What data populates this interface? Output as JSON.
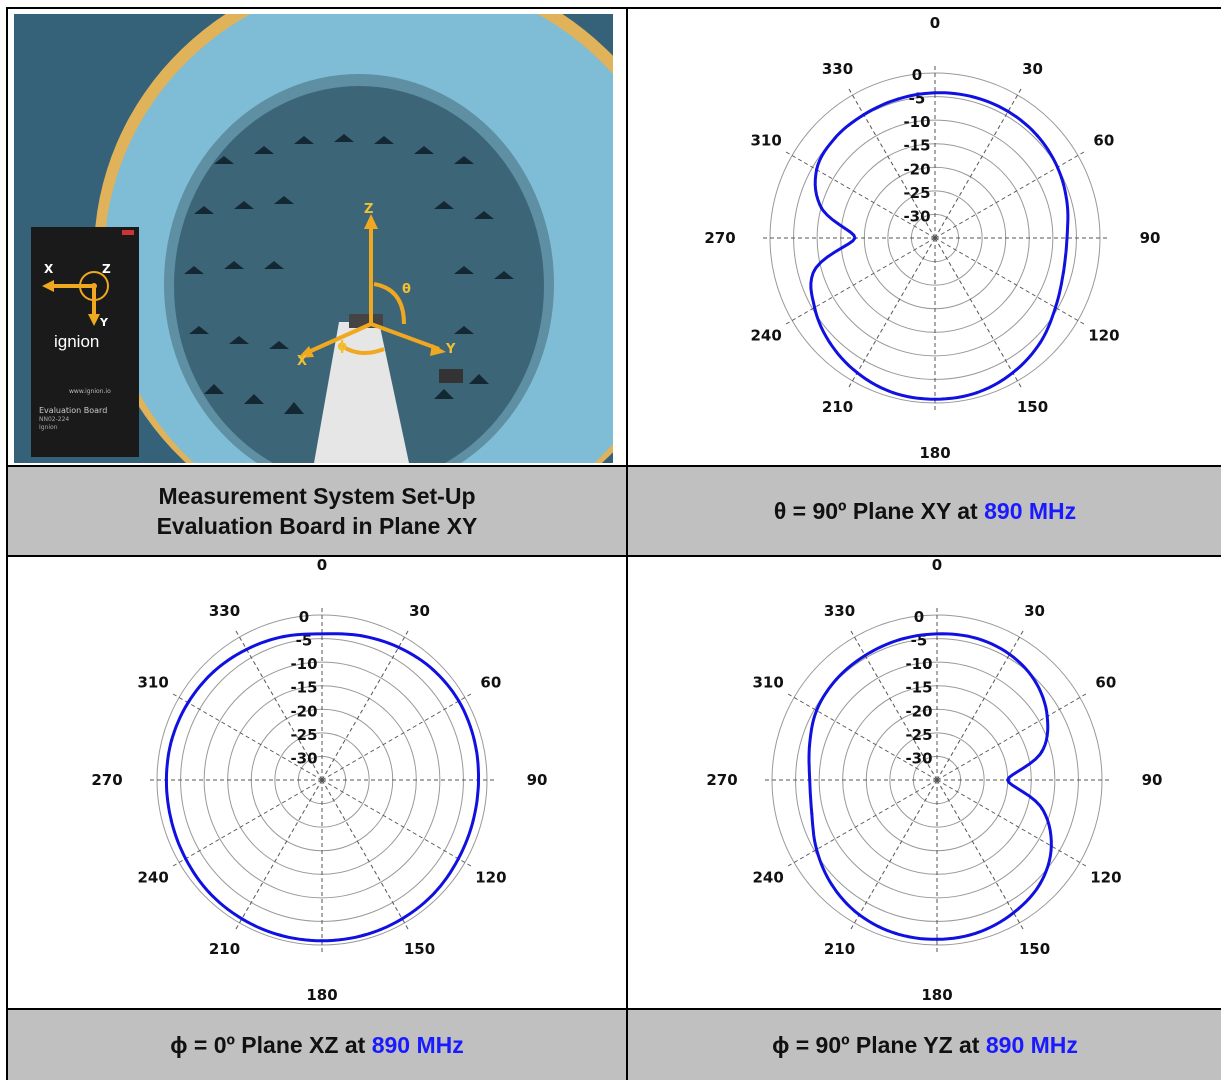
{
  "captions": {
    "setup_line1": "Measurement System Set-Up",
    "setup_line2": "Evaluation Board in Plane XY",
    "xy": {
      "prefix": "θ = 90º Plane XY at ",
      "freq": "890 MHz"
    },
    "xz": {
      "prefix": "ϕ = 0º Plane XZ at ",
      "freq": "890 MHz"
    },
    "yz": {
      "prefix": "ϕ = 90º Plane YZ at ",
      "freq": "890 MHz"
    }
  },
  "photo": {
    "board_logo": "ignion",
    "board_url": "www.ignion.io",
    "board_title": "Evaluation Board",
    "board_model": "NN02-224",
    "board_brand": "Ignion",
    "axes": {
      "x": "X",
      "y": "Y",
      "z": "Z",
      "theta": "θ",
      "phi": "ϕ"
    },
    "board_axes": {
      "x": "X",
      "y": "Y",
      "z": "Z"
    }
  },
  "colors": {
    "trace": "#1010e0",
    "caption_bg": "#c0c0c0",
    "freq_text": "#1a1aff"
  },
  "chart_data": [
    {
      "type": "polar",
      "name": "xy",
      "angle_labels": [
        "0",
        "30",
        "60",
        "90",
        "120",
        "150",
        "180",
        "210",
        "240",
        "270",
        "310",
        "330"
      ],
      "ring_labels": [
        "0",
        "-5",
        "-10",
        "-15",
        "-20",
        "-25",
        "-30"
      ],
      "r_range": [
        -35,
        0
      ],
      "angles_deg": [
        0,
        15,
        30,
        45,
        60,
        75,
        90,
        105,
        120,
        135,
        150,
        165,
        180,
        195,
        210,
        225,
        240,
        255,
        270,
        285,
        300,
        315,
        330,
        345
      ],
      "gain_db": [
        -4.2,
        -4.0,
        -4.0,
        -4.3,
        -5.0,
        -6.0,
        -7.0,
        -6.8,
        -5.5,
        -3.5,
        -2.0,
        -1.0,
        -0.8,
        -1.0,
        -2.0,
        -3.5,
        -5.5,
        -8.5,
        -18.0,
        -10.0,
        -6.0,
        -5.0,
        -4.8,
        -4.5
      ]
    },
    {
      "type": "polar",
      "name": "xz",
      "angle_labels": [
        "0",
        "30",
        "60",
        "90",
        "120",
        "150",
        "180",
        "210",
        "240",
        "270",
        "310",
        "330"
      ],
      "ring_labels": [
        "0",
        "-5",
        "-10",
        "-15",
        "-20",
        "-25",
        "-30"
      ],
      "r_range": [
        -35,
        0
      ],
      "angles_deg": [
        0,
        15,
        30,
        45,
        60,
        75,
        90,
        105,
        120,
        135,
        150,
        165,
        180,
        195,
        210,
        225,
        240,
        255,
        270,
        285,
        300,
        315,
        330,
        345
      ],
      "gain_db": [
        -4.0,
        -3.3,
        -2.5,
        -1.8,
        -1.5,
        -1.6,
        -1.8,
        -1.8,
        -1.6,
        -1.2,
        -1.0,
        -0.9,
        -0.9,
        -0.9,
        -1.0,
        -1.2,
        -1.6,
        -1.9,
        -2.0,
        -2.0,
        -2.2,
        -2.5,
        -3.0,
        -3.5
      ]
    },
    {
      "type": "polar",
      "name": "yz",
      "angle_labels": [
        "0",
        "30",
        "60",
        "90",
        "120",
        "150",
        "180",
        "210",
        "240",
        "270",
        "310",
        "330"
      ],
      "ring_labels": [
        "0",
        "-5",
        "-10",
        "-15",
        "-20",
        "-25",
        "-30"
      ],
      "r_range": [
        -35,
        0
      ],
      "angles_deg": [
        0,
        15,
        30,
        45,
        60,
        75,
        90,
        105,
        120,
        135,
        150,
        165,
        180,
        195,
        210,
        225,
        240,
        255,
        270,
        285,
        300,
        315,
        330,
        345
      ],
      "gain_db": [
        -4.0,
        -3.8,
        -4.2,
        -5.5,
        -8.0,
        -12.0,
        -20.0,
        -12.0,
        -7.0,
        -4.0,
        -2.5,
        -1.5,
        -1.2,
        -1.3,
        -2.0,
        -3.5,
        -5.5,
        -7.5,
        -8.0,
        -7.0,
        -5.5,
        -4.8,
        -4.5,
        -4.2
      ]
    }
  ]
}
